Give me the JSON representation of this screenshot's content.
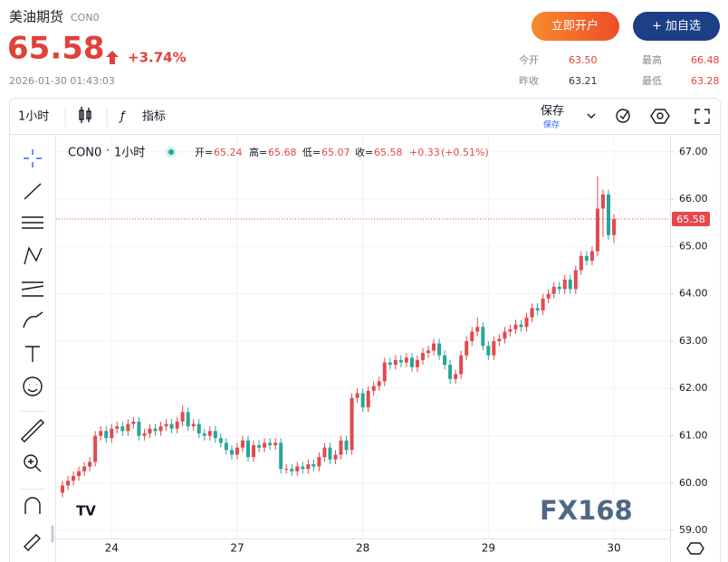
{
  "header": {
    "name": "美油期货",
    "code": "CON0",
    "price": "65.58",
    "change_pct": "+3.74%",
    "time": "2026-01-30 01:43:03"
  },
  "buttons": {
    "open_account": "立即开户",
    "add_watch": "+ 加自选"
  },
  "stats": {
    "open_label": "今开",
    "open": "63.50",
    "high_label": "最高",
    "high": "66.48",
    "prev_label": "昨收",
    "prev": "63.21",
    "low_label": "最低",
    "low": "63.28"
  },
  "toolbar": {
    "interval": "1小时",
    "indicators": "指标",
    "save": "保存",
    "save_sub": "保存"
  },
  "legend": {
    "symbol": "CON0",
    "sep": "·",
    "interval": "1小时",
    "o_label": "开=",
    "o": "65.24",
    "h_label": "高=",
    "h": "65.68",
    "l_label": "低=",
    "l": "65.07",
    "c_label": "收=",
    "c": "65.58",
    "change": "+0.33",
    "change_pct": "(+0.51%)"
  },
  "watermark": "FX168",
  "chart_data": {
    "type": "candlestick",
    "up_color": "#e5484d",
    "down_color": "#26a69a",
    "grid": true,
    "categories": [
      null,
      null,
      null,
      null,
      null,
      null,
      null,
      null,
      null,
      "24",
      null,
      null,
      null,
      null,
      null,
      null,
      null,
      null,
      null,
      null,
      null,
      null,
      null,
      null,
      null,
      null,
      null,
      null,
      null,
      null,
      null,
      null,
      "27",
      null,
      null,
      null,
      null,
      null,
      null,
      null,
      null,
      null,
      null,
      null,
      null,
      null,
      null,
      null,
      null,
      null,
      null,
      null,
      null,
      null,
      null,
      "28",
      null,
      null,
      null,
      null,
      null,
      null,
      null,
      null,
      null,
      null,
      null,
      null,
      null,
      null,
      null,
      null,
      null,
      null,
      null,
      null,
      null,
      null,
      "29",
      null,
      null,
      null,
      null,
      null,
      null,
      null,
      null,
      null,
      null,
      null,
      null,
      null,
      null,
      null,
      null,
      null,
      null,
      null,
      null,
      null,
      null,
      "30"
    ],
    "open": [
      59.8,
      59.95,
      60.05,
      60.15,
      60.25,
      60.35,
      60.45,
      61.0,
      61.1,
      60.95,
      61.15,
      61.2,
      61.1,
      61.25,
      61.3,
      61.0,
      61.05,
      61.15,
      61.1,
      61.2,
      61.25,
      61.15,
      61.3,
      61.5,
      61.2,
      61.25,
      61.05,
      61.0,
      61.1,
      60.95,
      60.85,
      60.7,
      60.6,
      60.75,
      60.9,
      60.55,
      60.8,
      60.75,
      60.85,
      60.8,
      60.85,
      60.3,
      60.3,
      60.25,
      60.35,
      60.3,
      60.4,
      60.35,
      60.55,
      60.75,
      60.5,
      60.6,
      60.9,
      60.7,
      61.8,
      61.9,
      61.6,
      61.95,
      62.05,
      62.15,
      62.55,
      62.5,
      62.6,
      62.55,
      62.65,
      62.45,
      62.6,
      62.75,
      62.8,
      62.95,
      62.7,
      62.5,
      62.2,
      62.3,
      62.7,
      63.0,
      63.2,
      63.3,
      62.9,
      62.7,
      63.0,
      63.05,
      63.2,
      63.25,
      63.35,
      63.3,
      63.5,
      63.7,
      63.65,
      63.9,
      64.0,
      64.15,
      64.1,
      64.3,
      64.1,
      64.5,
      64.8,
      64.7,
      64.9,
      65.8,
      66.1,
      65.24
    ],
    "high": [
      60.05,
      60.15,
      60.25,
      60.35,
      60.45,
      60.55,
      61.1,
      61.2,
      61.2,
      61.25,
      61.3,
      61.3,
      61.35,
      61.4,
      61.4,
      61.15,
      61.25,
      61.25,
      61.3,
      61.35,
      61.35,
      61.4,
      61.65,
      61.6,
      61.35,
      61.35,
      61.15,
      61.2,
      61.2,
      61.05,
      60.95,
      60.8,
      60.85,
      61.0,
      61.0,
      60.9,
      60.9,
      60.95,
      60.95,
      60.95,
      60.95,
      60.4,
      60.4,
      60.45,
      60.45,
      60.5,
      60.5,
      60.65,
      60.85,
      60.85,
      60.7,
      61.0,
      61.0,
      61.9,
      62.0,
      62.0,
      62.05,
      62.15,
      62.25,
      62.65,
      62.65,
      62.7,
      62.7,
      62.75,
      62.75,
      62.7,
      62.85,
      62.9,
      63.05,
      63.05,
      62.8,
      62.6,
      62.4,
      62.8,
      63.1,
      63.3,
      63.5,
      63.4,
      63.0,
      63.1,
      63.15,
      63.3,
      63.35,
      63.45,
      63.45,
      63.6,
      63.8,
      63.8,
      64.0,
      64.1,
      64.25,
      64.25,
      64.4,
      64.4,
      64.6,
      64.9,
      64.9,
      65.0,
      66.48,
      66.2,
      66.2,
      65.68
    ],
    "low": [
      59.7,
      59.85,
      59.95,
      60.05,
      60.15,
      60.25,
      60.35,
      60.9,
      60.85,
      60.85,
      61.05,
      61.0,
      61.0,
      61.15,
      60.9,
      60.9,
      60.95,
      61.0,
      61.0,
      61.1,
      61.05,
      61.05,
      61.2,
      61.1,
      61.1,
      60.95,
      60.9,
      60.9,
      60.85,
      60.75,
      60.6,
      60.5,
      60.5,
      60.65,
      60.45,
      60.45,
      60.65,
      60.65,
      60.7,
      60.7,
      60.2,
      60.2,
      60.15,
      60.15,
      60.2,
      60.2,
      60.25,
      60.25,
      60.45,
      60.4,
      60.4,
      60.5,
      60.6,
      60.6,
      61.7,
      61.5,
      61.5,
      61.85,
      61.95,
      62.05,
      62.4,
      62.4,
      62.45,
      62.45,
      62.35,
      62.35,
      62.5,
      62.65,
      62.7,
      62.6,
      62.4,
      62.1,
      62.1,
      62.2,
      62.6,
      62.9,
      63.1,
      62.8,
      62.6,
      62.6,
      62.9,
      62.95,
      63.1,
      63.15,
      63.2,
      63.2,
      63.4,
      63.55,
      63.55,
      63.8,
      63.9,
      64.0,
      64.0,
      64.0,
      64.0,
      64.4,
      64.6,
      64.6,
      64.8,
      65.2,
      65.14,
      65.07
    ],
    "close": [
      59.95,
      60.05,
      60.15,
      60.25,
      60.35,
      60.45,
      61.0,
      61.1,
      60.95,
      61.15,
      61.2,
      61.1,
      61.25,
      61.3,
      61.0,
      61.05,
      61.15,
      61.1,
      61.2,
      61.25,
      61.15,
      61.3,
      61.5,
      61.2,
      61.25,
      61.05,
      61.0,
      61.1,
      60.95,
      60.85,
      60.7,
      60.6,
      60.75,
      60.9,
      60.55,
      60.8,
      60.75,
      60.85,
      60.8,
      60.85,
      60.3,
      60.3,
      60.25,
      60.35,
      60.3,
      60.4,
      60.35,
      60.55,
      60.75,
      60.5,
      60.6,
      60.9,
      60.7,
      61.8,
      61.9,
      61.6,
      61.95,
      62.05,
      62.15,
      62.55,
      62.5,
      62.6,
      62.55,
      62.65,
      62.45,
      62.6,
      62.75,
      62.8,
      62.95,
      62.7,
      62.5,
      62.2,
      62.3,
      62.7,
      63.0,
      63.2,
      63.3,
      62.9,
      62.7,
      63.0,
      63.05,
      63.2,
      63.25,
      63.35,
      63.3,
      63.5,
      63.7,
      63.65,
      63.9,
      64.0,
      64.15,
      64.1,
      64.3,
      64.1,
      64.5,
      64.8,
      64.7,
      64.9,
      65.8,
      66.1,
      65.24,
      65.58
    ],
    "ylim": [
      58.83,
      67.34
    ],
    "yticks": [
      {
        "value": 59,
        "label": "59.00"
      },
      {
        "value": 60,
        "label": "60.00"
      },
      {
        "value": 61,
        "label": "61.00"
      },
      {
        "value": 62,
        "label": "62.00"
      },
      {
        "value": 63,
        "label": "63.00"
      },
      {
        "value": 64,
        "label": "64.00"
      },
      {
        "value": 65,
        "label": "65.00"
      },
      {
        "value": 66,
        "label": "66.00"
      },
      {
        "value": 67,
        "label": "67.00"
      }
    ]
  }
}
